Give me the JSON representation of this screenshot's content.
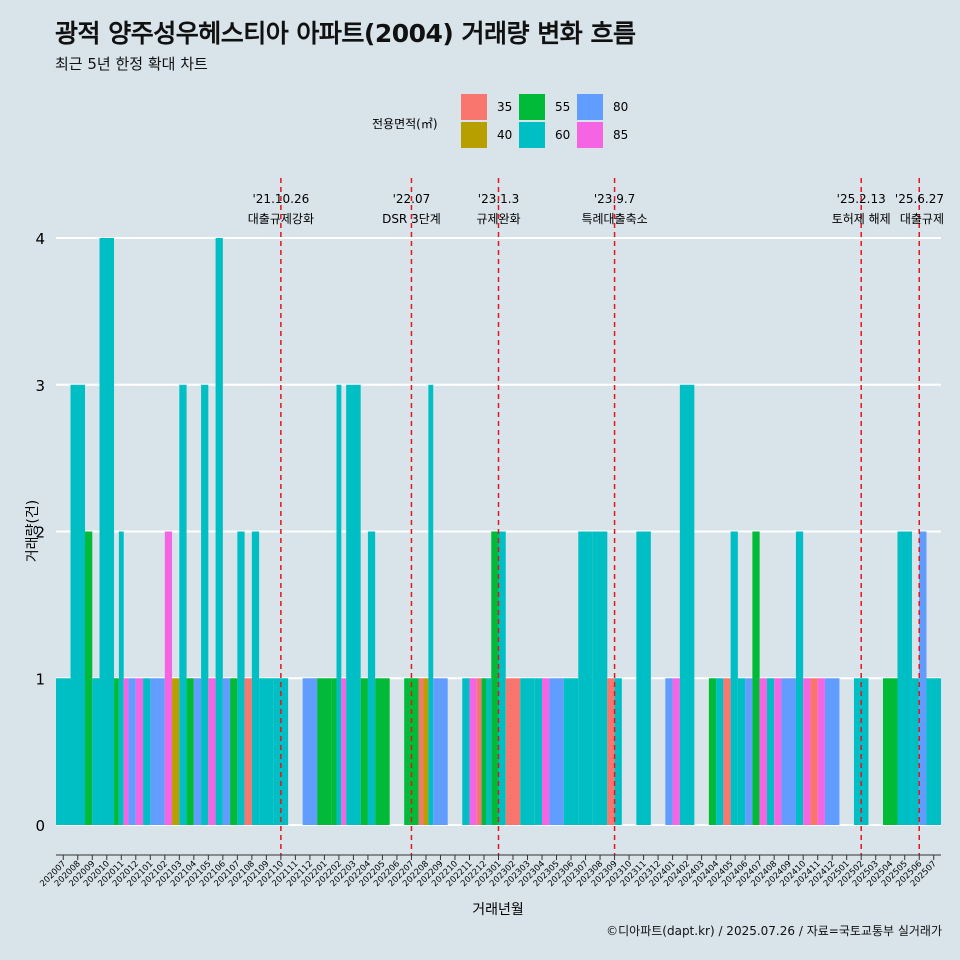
{
  "header": {
    "title": "광적 양주성우헤스티아 아파트(2004) 거래량 변화 흐름",
    "subtitle": "최근 5년 한정 확대 차트"
  },
  "caption": "©디아파트(dapt.kr) / 2025.07.26 / 자료=국토교통부 실거래가",
  "colors": {
    "35": "#F8766D",
    "40": "#B79F00",
    "55": "#00BA38",
    "60": "#00BFC4",
    "80": "#619CFF",
    "85": "#F564E3",
    "background": "#d8e4ea",
    "grid": "#ffffff",
    "vline": "#e8131b"
  },
  "chart_data": {
    "type": "bar",
    "stacking": "dodge",
    "title": "광적 양주성우헤스티아 아파트(2004) 거래량 변화 흐름",
    "xlabel": "거래년월",
    "ylabel": "거래량(건)",
    "ylim": [
      0,
      4
    ],
    "yticks": [
      0,
      1,
      2,
      3,
      4
    ],
    "legend": {
      "title": "전용면적(㎡)",
      "position": "top",
      "entries": [
        "35",
        "40",
        "55",
        "60",
        "80",
        "85"
      ]
    },
    "categories": [
      "202007",
      "202008",
      "202009",
      "202010",
      "202011",
      "202012",
      "202101",
      "202102",
      "202103",
      "202104",
      "202105",
      "202106",
      "202107",
      "202108",
      "202109",
      "202110",
      "202111",
      "202112",
      "202201",
      "202202",
      "202203",
      "202204",
      "202205",
      "202206",
      "202207",
      "202208",
      "202209",
      "202210",
      "202211",
      "202212",
      "202301",
      "202302",
      "202303",
      "202304",
      "202305",
      "202306",
      "202307",
      "202308",
      "202309",
      "202310",
      "202311",
      "202312",
      "202401",
      "202402",
      "202403",
      "202404",
      "202405",
      "202406",
      "202407",
      "202408",
      "202409",
      "202410",
      "202411",
      "202412",
      "202501",
      "202502",
      "202503",
      "202504",
      "202505",
      "202506",
      "202507"
    ],
    "series": [
      {
        "category": "202007",
        "bars": [
          {
            "area": "60",
            "value": 1
          }
        ]
      },
      {
        "category": "202008",
        "bars": [
          {
            "area": "60",
            "value": 3
          }
        ]
      },
      {
        "category": "202009",
        "bars": [
          {
            "area": "55",
            "value": 2
          },
          {
            "area": "60",
            "value": 1
          }
        ]
      },
      {
        "category": "202010",
        "bars": [
          {
            "area": "60",
            "value": 4
          }
        ]
      },
      {
        "category": "202011",
        "bars": [
          {
            "area": "55",
            "value": 1
          },
          {
            "area": "60",
            "value": 2
          },
          {
            "area": "85",
            "value": 1
          }
        ]
      },
      {
        "category": "202012",
        "bars": [
          {
            "area": "80",
            "value": 1
          },
          {
            "area": "85",
            "value": 1
          }
        ]
      },
      {
        "category": "202101",
        "bars": [
          {
            "area": "60",
            "value": 1
          },
          {
            "area": "80",
            "value": 1
          }
        ]
      },
      {
        "category": "202102",
        "bars": [
          {
            "area": "80",
            "value": 1
          },
          {
            "area": "85",
            "value": 2
          }
        ]
      },
      {
        "category": "202103",
        "bars": [
          {
            "area": "40",
            "value": 1
          },
          {
            "area": "60",
            "value": 3
          }
        ]
      },
      {
        "category": "202104",
        "bars": [
          {
            "area": "55",
            "value": 1
          },
          {
            "area": "80",
            "value": 1
          }
        ]
      },
      {
        "category": "202105",
        "bars": [
          {
            "area": "60",
            "value": 3
          },
          {
            "area": "85",
            "value": 1
          }
        ]
      },
      {
        "category": "202106",
        "bars": [
          {
            "area": "60",
            "value": 4
          },
          {
            "area": "80",
            "value": 1
          }
        ]
      },
      {
        "category": "202107",
        "bars": [
          {
            "area": "55",
            "value": 1
          },
          {
            "area": "60",
            "value": 2
          }
        ]
      },
      {
        "category": "202108",
        "bars": [
          {
            "area": "35",
            "value": 1
          },
          {
            "area": "60",
            "value": 2
          }
        ]
      },
      {
        "category": "202109",
        "bars": [
          {
            "area": "60",
            "value": 1
          }
        ]
      },
      {
        "category": "202110",
        "bars": [
          {
            "area": "60",
            "value": 1
          }
        ]
      },
      {
        "category": "202111",
        "bars": []
      },
      {
        "category": "202112",
        "bars": [
          {
            "area": "80",
            "value": 1
          }
        ]
      },
      {
        "category": "202201",
        "bars": [
          {
            "area": "55",
            "value": 1
          }
        ]
      },
      {
        "category": "202202",
        "bars": [
          {
            "area": "55",
            "value": 1
          },
          {
            "area": "60",
            "value": 3
          },
          {
            "area": "85",
            "value": 1
          }
        ]
      },
      {
        "category": "202203",
        "bars": [
          {
            "area": "60",
            "value": 3
          }
        ]
      },
      {
        "category": "202204",
        "bars": [
          {
            "area": "55",
            "value": 1
          },
          {
            "area": "60",
            "value": 2
          }
        ]
      },
      {
        "category": "202205",
        "bars": [
          {
            "area": "55",
            "value": 1
          }
        ]
      },
      {
        "category": "202206",
        "bars": []
      },
      {
        "category": "202207",
        "bars": [
          {
            "area": "55",
            "value": 1
          }
        ]
      },
      {
        "category": "202208",
        "bars": [
          {
            "area": "35",
            "value": 1
          },
          {
            "area": "40",
            "value": 1
          },
          {
            "area": "60",
            "value": 3
          }
        ]
      },
      {
        "category": "202209",
        "bars": [
          {
            "area": "80",
            "value": 1
          }
        ]
      },
      {
        "category": "202210",
        "bars": []
      },
      {
        "category": "202211",
        "bars": [
          {
            "area": "60",
            "value": 1
          },
          {
            "area": "85",
            "value": 1
          }
        ]
      },
      {
        "category": "202212",
        "bars": [
          {
            "area": "35",
            "value": 1
          },
          {
            "area": "55",
            "value": 1
          },
          {
            "area": "60",
            "value": 1
          }
        ]
      },
      {
        "category": "202301",
        "bars": [
          {
            "area": "55",
            "value": 2
          },
          {
            "area": "60",
            "value": 2
          }
        ]
      },
      {
        "category": "202302",
        "bars": [
          {
            "area": "35",
            "value": 1
          }
        ]
      },
      {
        "category": "202303",
        "bars": [
          {
            "area": "60",
            "value": 1
          }
        ]
      },
      {
        "category": "202304",
        "bars": [
          {
            "area": "60",
            "value": 1
          },
          {
            "area": "85",
            "value": 1
          }
        ]
      },
      {
        "category": "202305",
        "bars": [
          {
            "area": "80",
            "value": 1
          }
        ]
      },
      {
        "category": "202306",
        "bars": [
          {
            "area": "60",
            "value": 1
          }
        ]
      },
      {
        "category": "202307",
        "bars": [
          {
            "area": "60",
            "value": 2
          }
        ]
      },
      {
        "category": "202308",
        "bars": [
          {
            "area": "60",
            "value": 2
          }
        ]
      },
      {
        "category": "202309",
        "bars": [
          {
            "area": "35",
            "value": 1
          },
          {
            "area": "60",
            "value": 1
          }
        ]
      },
      {
        "category": "202310",
        "bars": []
      },
      {
        "category": "202311",
        "bars": [
          {
            "area": "60",
            "value": 2
          }
        ]
      },
      {
        "category": "202312",
        "bars": []
      },
      {
        "category": "202401",
        "bars": [
          {
            "area": "80",
            "value": 1
          },
          {
            "area": "85",
            "value": 1
          }
        ]
      },
      {
        "category": "202402",
        "bars": [
          {
            "area": "60",
            "value": 3
          }
        ]
      },
      {
        "category": "202403",
        "bars": []
      },
      {
        "category": "202404",
        "bars": [
          {
            "area": "55",
            "value": 1
          },
          {
            "area": "60",
            "value": 1
          }
        ]
      },
      {
        "category": "202405",
        "bars": [
          {
            "area": "35",
            "value": 1
          },
          {
            "area": "60",
            "value": 2
          }
        ]
      },
      {
        "category": "202406",
        "bars": [
          {
            "area": "60",
            "value": 1
          },
          {
            "area": "80",
            "value": 1
          }
        ]
      },
      {
        "category": "202407",
        "bars": [
          {
            "area": "55",
            "value": 2
          },
          {
            "area": "85",
            "value": 1
          }
        ]
      },
      {
        "category": "202408",
        "bars": [
          {
            "area": "60",
            "value": 1
          },
          {
            "area": "85",
            "value": 1
          }
        ]
      },
      {
        "category": "202409",
        "bars": [
          {
            "area": "80",
            "value": 1
          }
        ]
      },
      {
        "category": "202410",
        "bars": [
          {
            "area": "60",
            "value": 2
          },
          {
            "area": "85",
            "value": 1
          }
        ]
      },
      {
        "category": "202411",
        "bars": [
          {
            "area": "35",
            "value": 1
          },
          {
            "area": "85",
            "value": 1
          }
        ]
      },
      {
        "category": "202412",
        "bars": [
          {
            "area": "80",
            "value": 1
          }
        ]
      },
      {
        "category": "202501",
        "bars": []
      },
      {
        "category": "202502",
        "bars": [
          {
            "area": "60",
            "value": 1
          }
        ]
      },
      {
        "category": "202503",
        "bars": []
      },
      {
        "category": "202504",
        "bars": [
          {
            "area": "55",
            "value": 1
          }
        ]
      },
      {
        "category": "202505",
        "bars": [
          {
            "area": "60",
            "value": 2
          }
        ]
      },
      {
        "category": "202506",
        "bars": [
          {
            "area": "60",
            "value": 1
          },
          {
            "area": "80",
            "value": 2
          }
        ]
      },
      {
        "category": "202507",
        "bars": [
          {
            "area": "60",
            "value": 1
          }
        ]
      }
    ],
    "annotations": [
      {
        "category": "202110",
        "date": "'21.10.26",
        "label": "대출규제강화"
      },
      {
        "category": "202207",
        "date": "'22.07",
        "label": "DSR 3단계"
      },
      {
        "category": "202301",
        "date": "'23.1.3",
        "label": "규제완화"
      },
      {
        "category": "202309",
        "date": "'23.9.7",
        "label": "특례대출축소"
      },
      {
        "category": "202502",
        "date": "'25.2.13",
        "label": "토허제 해제"
      },
      {
        "category": "202506",
        "date": "'25.6.27",
        "label": "대출규제"
      }
    ]
  }
}
